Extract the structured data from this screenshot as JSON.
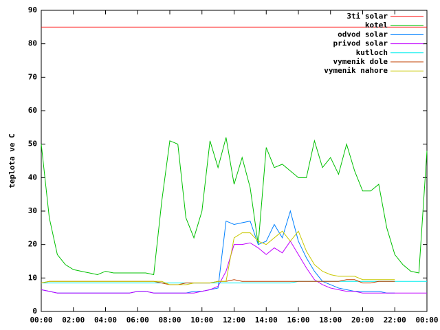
{
  "chart_data": {
    "type": "line",
    "ylabel": "teplota ve C",
    "xlim": [
      0,
      24
    ],
    "ylim": [
      0,
      90
    ],
    "xticks": [
      {
        "value": 0,
        "label": "00:00"
      },
      {
        "value": 2,
        "label": "02:00"
      },
      {
        "value": 4,
        "label": "04:00"
      },
      {
        "value": 6,
        "label": "06:00"
      },
      {
        "value": 8,
        "label": "08:00"
      },
      {
        "value": 10,
        "label": "10:00"
      },
      {
        "value": 12,
        "label": "12:00"
      },
      {
        "value": 14,
        "label": "14:00"
      },
      {
        "value": 16,
        "label": "16:00"
      },
      {
        "value": 18,
        "label": "18:00"
      },
      {
        "value": 20,
        "label": "20:00"
      },
      {
        "value": 22,
        "label": "22:00"
      },
      {
        "value": 24,
        "label": "00:00"
      }
    ],
    "yticks": [
      0,
      10,
      20,
      30,
      40,
      50,
      60,
      70,
      80,
      90
    ],
    "grid": false,
    "legend": "top-right",
    "x": [
      0,
      0.5,
      1,
      1.5,
      2,
      2.5,
      3,
      3.5,
      4,
      4.5,
      5,
      5.5,
      6,
      6.5,
      7,
      7.5,
      8,
      8.5,
      9,
      9.5,
      10,
      10.5,
      11,
      11.5,
      12,
      12.5,
      13,
      13.5,
      14,
      14.5,
      15,
      15.5,
      16,
      16.5,
      17,
      17.5,
      18,
      18.5,
      19,
      19.5,
      20,
      20.5,
      21,
      21.5,
      22,
      22.5,
      23,
      23.5,
      24
    ],
    "series": [
      {
        "name": "3ti solar",
        "color": "#ff0000",
        "values": [
          85,
          85,
          85,
          85,
          85,
          85,
          85,
          85,
          85,
          85,
          85,
          85,
          85,
          85,
          85,
          85,
          85,
          85,
          85,
          85,
          85,
          85,
          85,
          85,
          85,
          85,
          85,
          85,
          85,
          85,
          85,
          85,
          85,
          85,
          85,
          85,
          85,
          85,
          85,
          85,
          85,
          85,
          85,
          85,
          85,
          85,
          85,
          85,
          85
        ]
      },
      {
        "name": "kotel",
        "color": "#00c000",
        "values": [
          50,
          28,
          17,
          14,
          12.5,
          12,
          11.5,
          11,
          12,
          11.5,
          11.5,
          11.5,
          11.5,
          11.5,
          11,
          33,
          51,
          50,
          28,
          22,
          30,
          51,
          43,
          52,
          38,
          46,
          37,
          20,
          49,
          43,
          44,
          42,
          40,
          40,
          51,
          43,
          46,
          41,
          50,
          42,
          36,
          36,
          38,
          25,
          17,
          14,
          12,
          11.5,
          48
        ]
      },
      {
        "name": "odvod solar",
        "color": "#0080ff",
        "values": [
          6.5,
          6,
          5.5,
          5.5,
          5.5,
          5.5,
          5.5,
          5.5,
          5.5,
          5.5,
          5.5,
          5.5,
          6,
          6,
          5.5,
          5.5,
          5.5,
          5.5,
          5.5,
          6,
          6,
          6.5,
          7,
          27,
          26,
          26.5,
          27,
          20,
          21,
          26,
          22,
          30,
          21,
          16,
          12,
          9,
          8,
          7,
          6.5,
          6,
          6,
          6,
          6,
          5.5,
          5.5,
          null,
          null,
          null,
          null
        ]
      },
      {
        "name": "privod solar",
        "color": "#c000ff",
        "values": [
          6.5,
          6,
          5.5,
          5.5,
          5.5,
          5.5,
          5.5,
          5.5,
          5.5,
          5.5,
          5.5,
          5.5,
          6,
          6,
          5.5,
          5.5,
          5.5,
          5.5,
          5.5,
          5.5,
          6,
          6.5,
          7.5,
          12,
          20,
          20,
          20.5,
          19,
          17,
          19,
          17.5,
          21,
          17,
          13,
          9.5,
          8,
          7,
          6.5,
          6,
          6,
          5.5,
          5.5,
          5.5,
          5.5,
          5.5,
          5.5,
          5.5,
          5.5,
          5.5
        ]
      },
      {
        "name": "kutloch",
        "color": "#00eeee",
        "values": [
          8.5,
          8.5,
          8.5,
          8.5,
          8.5,
          8.5,
          8.5,
          8.5,
          8.5,
          8.5,
          8.5,
          8.5,
          8.5,
          8.5,
          8.5,
          8.5,
          8.5,
          8.5,
          8.5,
          8.5,
          8.5,
          8.5,
          8.5,
          8.5,
          8.5,
          8.5,
          8.5,
          8.5,
          8.5,
          8.5,
          8.5,
          8.5,
          9,
          9,
          9,
          9,
          9,
          9,
          9,
          9,
          9,
          9,
          9,
          9,
          9,
          9,
          9,
          9,
          9
        ]
      },
      {
        "name": "vymenik dole",
        "color": "#c04000",
        "values": [
          8.5,
          9,
          9,
          9,
          9,
          9,
          9,
          9,
          9,
          9,
          9,
          9,
          9,
          9,
          9,
          8.5,
          8,
          8,
          8.5,
          8.5,
          8.5,
          8.5,
          9,
          9,
          9.5,
          9,
          9,
          9,
          9,
          9,
          9,
          9,
          9,
          9,
          9,
          9,
          9,
          9,
          9.5,
          9.5,
          8.5,
          8.5,
          9,
          9,
          9,
          null,
          null,
          null,
          null
        ]
      },
      {
        "name": "vymenik nahore",
        "color": "#c8c800",
        "values": [
          8.5,
          9,
          9,
          9,
          9,
          9,
          9,
          9,
          9,
          9,
          9,
          9,
          9,
          9,
          9,
          9,
          8,
          8,
          8,
          8.5,
          8.5,
          8.5,
          9,
          9,
          22,
          23.5,
          23.5,
          21,
          20,
          22,
          24,
          21,
          24,
          18,
          14,
          12,
          11,
          10.5,
          10.5,
          10.5,
          9.5,
          9.5,
          9.5,
          9.5,
          9.5,
          null,
          null,
          null,
          null
        ]
      }
    ]
  }
}
